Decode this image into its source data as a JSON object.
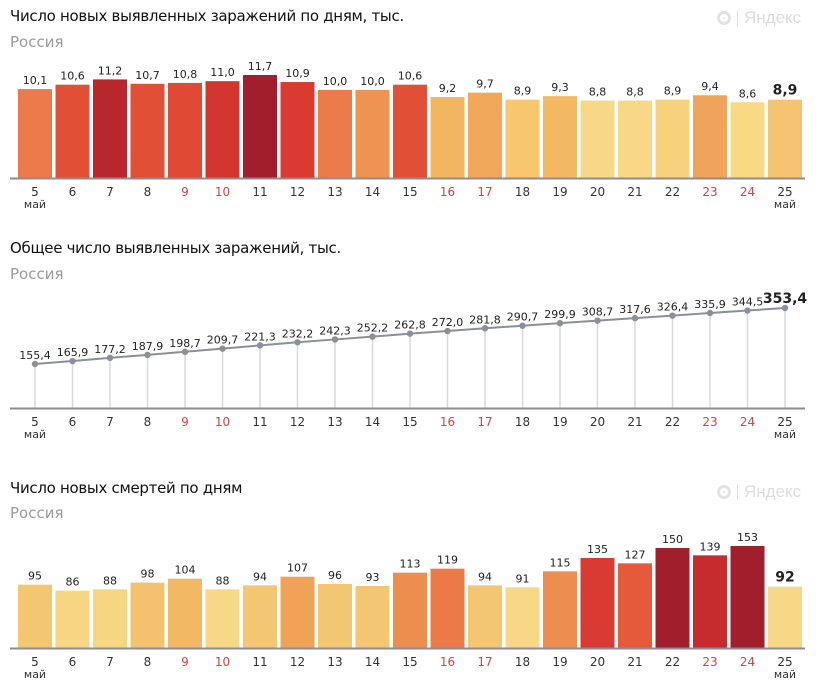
{
  "brand": "Яндекс",
  "month_label": "май",
  "weekend_color": "#d9413a",
  "chart_data": [
    {
      "type": "bar",
      "title": "Число новых выявленных заражений по дням, тыс.",
      "subtitle": "Россия",
      "categories": [
        "5",
        "6",
        "7",
        "8",
        "9",
        "10",
        "11",
        "12",
        "13",
        "14",
        "15",
        "16",
        "17",
        "18",
        "19",
        "20",
        "21",
        "22",
        "23",
        "24",
        "25"
      ],
      "weekend_categories": [
        "9",
        "10",
        "16",
        "17",
        "23",
        "24"
      ],
      "values": [
        10.1,
        10.6,
        11.2,
        10.7,
        10.8,
        11.0,
        11.7,
        10.9,
        10.0,
        10.0,
        10.6,
        9.2,
        9.7,
        8.9,
        9.3,
        8.8,
        8.8,
        8.9,
        9.4,
        8.6,
        8.9
      ],
      "colors": [
        "#ec7a4a",
        "#e24f37",
        "#b8272b",
        "#e24f37",
        "#e04a34",
        "#d2362e",
        "#a11f2c",
        "#d93b30",
        "#ed7b49",
        "#ee9450",
        "#e24f37",
        "#f2b661",
        "#f1a85a",
        "#f7c66d",
        "#f3b862",
        "#f7d886",
        "#f7d886",
        "#f7d17b",
        "#f0a45a",
        "#f8da85",
        "#f4c470"
      ],
      "decimals": 1,
      "ylim": [
        0,
        12
      ]
    },
    {
      "type": "line",
      "title": "Общее число выявленных заражений, тыс.",
      "subtitle": "Россия",
      "categories": [
        "5",
        "6",
        "7",
        "8",
        "9",
        "10",
        "11",
        "12",
        "13",
        "14",
        "15",
        "16",
        "17",
        "18",
        "19",
        "20",
        "21",
        "22",
        "23",
        "24",
        "25"
      ],
      "weekend_categories": [
        "9",
        "10",
        "16",
        "17",
        "23",
        "24"
      ],
      "values": [
        155.4,
        165.9,
        177.2,
        187.9,
        198.7,
        209.7,
        221.3,
        232.2,
        242.3,
        252.2,
        262.8,
        272.0,
        281.8,
        290.7,
        299.9,
        308.7,
        317.6,
        326.4,
        335.9,
        344.5,
        353.4
      ],
      "line_color": "#8a8f9c",
      "decimals": 1,
      "ylim": [
        0,
        360
      ]
    },
    {
      "type": "bar",
      "title": "Число новых смертей по дням",
      "subtitle": "Россия",
      "categories": [
        "5",
        "6",
        "7",
        "8",
        "9",
        "10",
        "11",
        "12",
        "13",
        "14",
        "15",
        "16",
        "17",
        "18",
        "19",
        "20",
        "21",
        "22",
        "23",
        "24",
        "25"
      ],
      "weekend_categories": [
        "9",
        "10",
        "16",
        "17",
        "23",
        "24"
      ],
      "values": [
        95,
        86,
        88,
        98,
        104,
        88,
        94,
        107,
        96,
        93,
        113,
        119,
        94,
        91,
        115,
        135,
        127,
        150,
        139,
        153,
        92
      ],
      "colors": [
        "#f3c772",
        "#f6d583",
        "#f6d583",
        "#f3c26e",
        "#f2b864",
        "#f7d886",
        "#f3c772",
        "#f0a356",
        "#f3c772",
        "#f3c772",
        "#ed8e4f",
        "#ec7a48",
        "#f3c772",
        "#f7d886",
        "#ed8e4f",
        "#d93a31",
        "#e55a3b",
        "#a11f2c",
        "#c62b2d",
        "#a11f2c",
        "#f7d886"
      ],
      "decimals": 0,
      "ylim": [
        0,
        155
      ]
    }
  ]
}
